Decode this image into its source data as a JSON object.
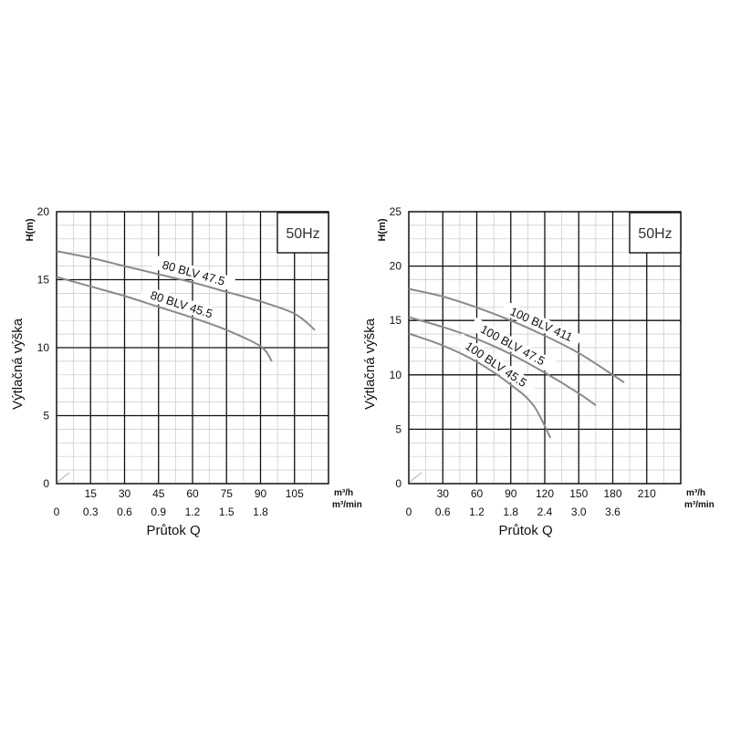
{
  "chart_data": [
    {
      "type": "line",
      "freq_label": "50Hz",
      "ylabel_unit": "H(m)",
      "ylabel": "Výtlačná výška",
      "xlabel": "Průtok Q",
      "x_unit_primary": "m³/h",
      "x_unit_secondary": "m³/min",
      "ylim": [
        0,
        20
      ],
      "xlim": [
        0,
        120
      ],
      "y_ticks": [
        "0",
        "5",
        "10",
        "15",
        "20"
      ],
      "x_ticks_primary": [
        "15",
        "30",
        "45",
        "60",
        "75",
        "90",
        "105"
      ],
      "x_ticks_secondary": [
        "0",
        "0.3",
        "0.6",
        "0.9",
        "1.2",
        "1.5",
        "1.8"
      ],
      "series": [
        {
          "name": "80 BLV 47.5",
          "x": [
            0,
            15,
            30,
            45,
            60,
            75,
            90,
            105,
            114
          ],
          "y": [
            17.1,
            16.6,
            16.0,
            15.4,
            14.8,
            14.1,
            13.4,
            12.5,
            11.3
          ]
        },
        {
          "name": "80 BLV 45.5",
          "x": [
            0,
            15,
            30,
            45,
            60,
            75,
            90,
            95
          ],
          "y": [
            15.2,
            14.5,
            13.8,
            13.0,
            12.2,
            11.3,
            10.1,
            9.0
          ]
        }
      ]
    },
    {
      "type": "line",
      "freq_label": "50Hz",
      "ylabel_unit": "H(m)",
      "ylabel": "Výtlačná výška",
      "xlabel": "Průtok Q",
      "x_unit_primary": "m³/h",
      "x_unit_secondary": "m³/min",
      "ylim": [
        0,
        25
      ],
      "xlim": [
        0,
        240
      ],
      "y_ticks": [
        "0",
        "5",
        "10",
        "15",
        "20",
        "25"
      ],
      "x_ticks_primary": [
        "30",
        "60",
        "90",
        "120",
        "150",
        "180",
        "210"
      ],
      "x_ticks_secondary": [
        "0",
        "0.6",
        "1.2",
        "1.8",
        "2.4",
        "3.0",
        "3.6"
      ],
      "series": [
        {
          "name": "100 BLV 411",
          "x": [
            0,
            30,
            60,
            90,
            120,
            150,
            180,
            190
          ],
          "y": [
            17.9,
            17.2,
            16.2,
            15.0,
            13.6,
            12.0,
            10.0,
            9.3
          ]
        },
        {
          "name": "100 BLV 47.5",
          "x": [
            0,
            30,
            60,
            90,
            120,
            150,
            165
          ],
          "y": [
            15.3,
            14.4,
            13.3,
            11.9,
            10.2,
            8.3,
            7.2
          ]
        },
        {
          "name": "100 BLV 45.5",
          "x": [
            0,
            30,
            60,
            90,
            110,
            125
          ],
          "y": [
            13.8,
            12.7,
            11.2,
            9.1,
            7.2,
            4.2
          ]
        }
      ]
    }
  ]
}
